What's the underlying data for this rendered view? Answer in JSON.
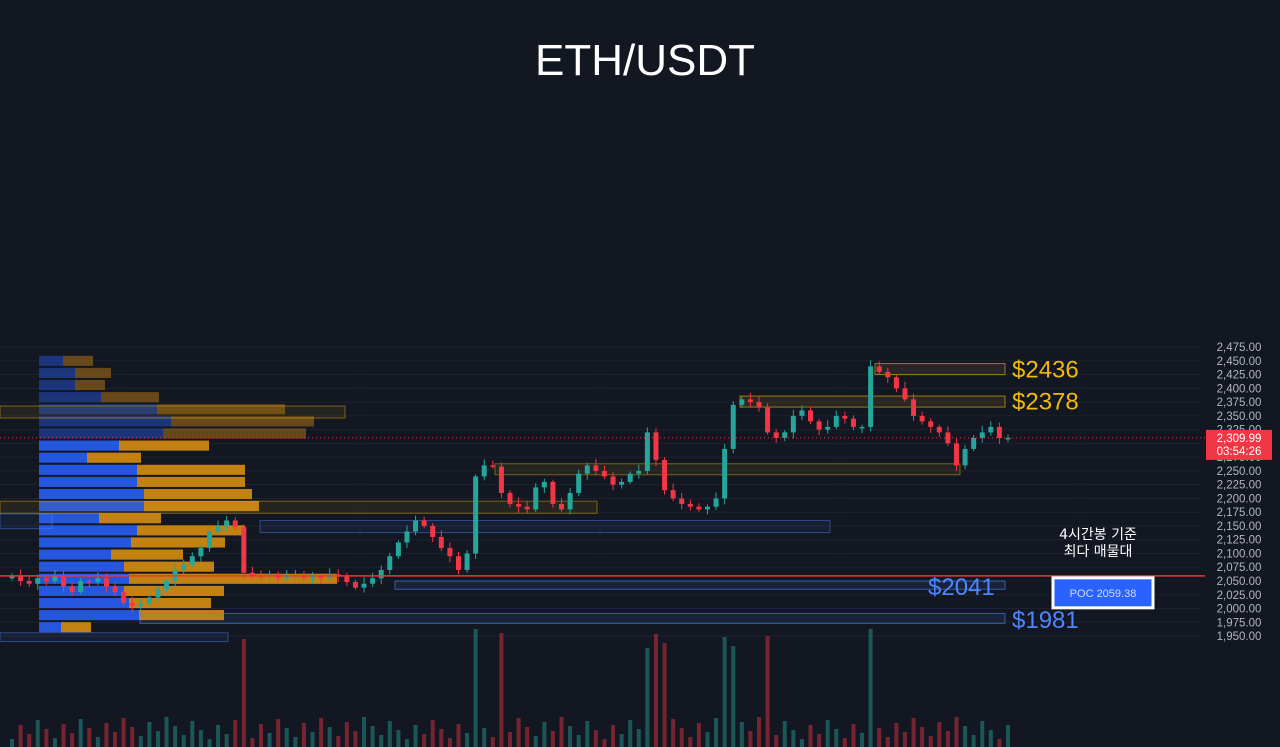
{
  "colors": {
    "background": "#131722",
    "grid": "#1e2230",
    "up": "#26a69a",
    "down": "#f23645",
    "vp_buy": "#2962ff",
    "vp_sell": "#e3940f",
    "level_gold": "#f0b90b",
    "level_blue": "#4d86ff",
    "poc_line": "#e53935",
    "price_tag": "#f23645"
  },
  "header": {
    "title": "ETH/USDT"
  },
  "price_tag": {
    "price": "2,309.99",
    "countdown": "03:54:26"
  },
  "annotation": {
    "line1": "4시간봉 기준",
    "line2": "최다 매물대"
  },
  "poc": {
    "label": "POC  2059.38",
    "value": 2059.38
  },
  "levels": [
    {
      "label": "$2436",
      "value": 2436,
      "zone": [
        2425,
        2445
      ],
      "color": "gold"
    },
    {
      "label": "$2378",
      "value": 2378,
      "zone": [
        2366,
        2386
      ],
      "color": "gold"
    },
    {
      "label": "$2041",
      "value": 2041,
      "zone": [
        2035,
        2050
      ],
      "color": "blue"
    },
    {
      "label": "$1981",
      "value": 1981,
      "zone": [
        1973,
        1991
      ],
      "color": "blue"
    }
  ],
  "chart_data": {
    "type": "candlestick",
    "title": "ETH/USDT",
    "y_axis": {
      "ticks": [
        "1,950.00",
        "1,975.00",
        "2,000.00",
        "2,025.00",
        "2,050.00",
        "2,075.00",
        "2,100.00",
        "2,125.00",
        "2,150.00",
        "2,175.00",
        "2,200.00",
        "2,225.00",
        "2,250.00",
        "2,275.00",
        "2,300.00",
        "2,325.00",
        "2,350.00",
        "2,375.00",
        "2,400.00",
        "2,425.00",
        "2,450.00",
        "2,475.00"
      ],
      "ylim": [
        1940,
        2475
      ],
      "side": "right"
    },
    "grid": true,
    "last_price": 2309.99,
    "poc": 2059.38,
    "candles_close_path": [
      2060,
      2050,
      2045,
      2055,
      2050,
      2058,
      2040,
      2030,
      2050,
      2048,
      2055,
      2040,
      2030,
      2010,
      2005,
      2008,
      2020,
      2035,
      2050,
      2070,
      2080,
      2095,
      2110,
      2140,
      2150,
      2160,
      2148,
      2065,
      2060,
      2058,
      2062,
      2055,
      2058,
      2060,
      2056,
      2060,
      2055,
      2062,
      2058,
      2048,
      2038,
      2045,
      2055,
      2070,
      2095,
      2120,
      2140,
      2160,
      2150,
      2130,
      2110,
      2095,
      2070,
      2100,
      2240,
      2260,
      2258,
      2210,
      2190,
      2185,
      2180,
      2220,
      2230,
      2190,
      2180,
      2210,
      2245,
      2260,
      2250,
      2240,
      2225,
      2230,
      2245,
      2250,
      2320,
      2270,
      2215,
      2200,
      2190,
      2185,
      2180,
      2185,
      2200,
      2290,
      2370,
      2380,
      2375,
      2365,
      2320,
      2310,
      2320,
      2350,
      2360,
      2340,
      2325,
      2330,
      2350,
      2345,
      2330,
      2330,
      2440,
      2430,
      2420,
      2400,
      2380,
      2350,
      2340,
      2330,
      2320,
      2300,
      2260,
      2290,
      2310,
      2320,
      2330,
      2310,
      2310
    ],
    "volume_profile": {
      "bin_size": 22,
      "bins": [
        {
          "price": 2450,
          "buy": 24,
          "sell": 30
        },
        {
          "price": 2428,
          "buy": 36,
          "sell": 36
        },
        {
          "price": 2406,
          "buy": 36,
          "sell": 30
        },
        {
          "price": 2384,
          "buy": 62,
          "sell": 58
        },
        {
          "price": 2362,
          "buy": 118,
          "sell": 128
        },
        {
          "price": 2340,
          "buy": 132,
          "sell": 143
        },
        {
          "price": 2318,
          "buy": 124,
          "sell": 143
        },
        {
          "price": 2296,
          "buy": 80,
          "sell": 90
        },
        {
          "price": 2274,
          "buy": 48,
          "sell": 54
        },
        {
          "price": 2252,
          "buy": 98,
          "sell": 108
        },
        {
          "price": 2230,
          "buy": 98,
          "sell": 108
        },
        {
          "price": 2208,
          "buy": 105,
          "sell": 108
        },
        {
          "price": 2186,
          "buy": 105,
          "sell": 115
        },
        {
          "price": 2164,
          "buy": 60,
          "sell": 62
        },
        {
          "price": 2142,
          "buy": 98,
          "sell": 108
        },
        {
          "price": 2120,
          "buy": 92,
          "sell": 94
        },
        {
          "price": 2098,
          "buy": 72,
          "sell": 72
        },
        {
          "price": 2076,
          "buy": 85,
          "sell": 90
        },
        {
          "price": 2054,
          "buy": 90,
          "sell": 208
        },
        {
          "price": 2032,
          "buy": 85,
          "sell": 100
        },
        {
          "price": 2010,
          "buy": 90,
          "sell": 82
        },
        {
          "price": 1988,
          "buy": 100,
          "sell": 85
        },
        {
          "price": 1966,
          "buy": 22,
          "sell": 30
        }
      ]
    }
  }
}
